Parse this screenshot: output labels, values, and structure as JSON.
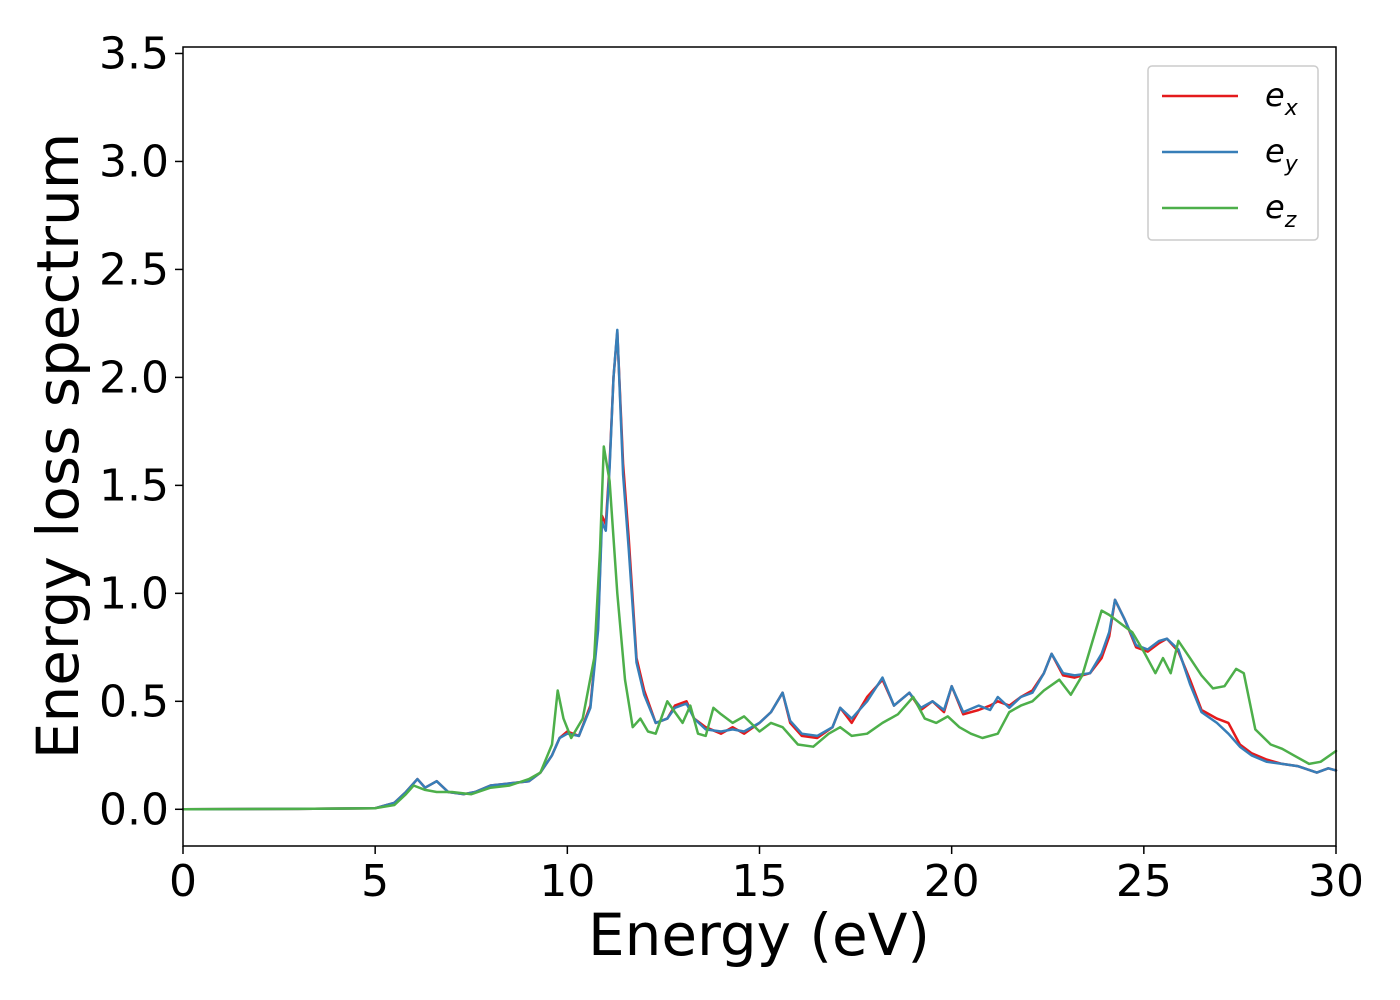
{
  "chart_data": {
    "type": "line",
    "title": "",
    "xlabel": "Energy (eV)",
    "ylabel": "Energy loss spectrum",
    "xlim": [
      0,
      30
    ],
    "ylim": [
      -0.17,
      3.53
    ],
    "xticks": [
      0,
      5,
      10,
      15,
      20,
      25,
      30
    ],
    "xtick_labels": [
      "0",
      "5",
      "10",
      "15",
      "20",
      "25",
      "30"
    ],
    "yticks": [
      0.0,
      0.5,
      1.0,
      1.5,
      2.0,
      2.5,
      3.0,
      3.5
    ],
    "ytick_labels": [
      "0.0",
      "0.5",
      "1.0",
      "1.5",
      "2.0",
      "2.5",
      "3.0",
      "3.5"
    ],
    "grid": false,
    "legend_position": "top-right",
    "series": [
      {
        "name": "e_x",
        "legend_base": "e",
        "legend_sub": "x",
        "color": "#e41a1c",
        "x": [
          0,
          3,
          5,
          5.5,
          5.8,
          6.1,
          6.3,
          6.6,
          6.9,
          7.3,
          7.6,
          8.0,
          8.5,
          9.0,
          9.3,
          9.6,
          9.8,
          10.0,
          10.3,
          10.6,
          10.8,
          10.9,
          11.0,
          11.1,
          11.2,
          11.3,
          11.45,
          11.6,
          11.8,
          12.0,
          12.3,
          12.6,
          12.8,
          13.1,
          13.3,
          13.6,
          14.0,
          14.3,
          14.6,
          15.0,
          15.3,
          15.6,
          15.8,
          16.1,
          16.5,
          16.9,
          17.1,
          17.4,
          17.8,
          18.2,
          18.5,
          18.9,
          19.2,
          19.5,
          19.8,
          20.0,
          20.3,
          20.7,
          21.0,
          21.2,
          21.5,
          21.8,
          22.1,
          22.4,
          22.6,
          22.9,
          23.2,
          23.6,
          23.9,
          24.1,
          24.25,
          24.5,
          24.8,
          25.1,
          25.4,
          25.6,
          25.9,
          26.2,
          26.5,
          26.9,
          27.2,
          27.5,
          27.8,
          28.2,
          28.6,
          29.0,
          29.5,
          29.8,
          30
        ],
        "y": [
          0.0,
          0.002,
          0.005,
          0.03,
          0.08,
          0.14,
          0.1,
          0.13,
          0.08,
          0.07,
          0.08,
          0.11,
          0.12,
          0.13,
          0.17,
          0.25,
          0.33,
          0.36,
          0.34,
          0.48,
          0.85,
          1.36,
          1.32,
          1.6,
          2.0,
          2.21,
          1.6,
          1.25,
          0.7,
          0.55,
          0.4,
          0.42,
          0.48,
          0.5,
          0.42,
          0.38,
          0.35,
          0.38,
          0.35,
          0.4,
          0.45,
          0.54,
          0.4,
          0.34,
          0.33,
          0.38,
          0.47,
          0.4,
          0.52,
          0.6,
          0.48,
          0.54,
          0.46,
          0.5,
          0.45,
          0.57,
          0.44,
          0.46,
          0.48,
          0.5,
          0.48,
          0.52,
          0.55,
          0.63,
          0.72,
          0.62,
          0.61,
          0.63,
          0.7,
          0.8,
          0.97,
          0.88,
          0.75,
          0.73,
          0.77,
          0.79,
          0.73,
          0.6,
          0.46,
          0.42,
          0.4,
          0.3,
          0.26,
          0.23,
          0.21,
          0.2,
          0.17,
          0.19,
          0.18
        ]
      },
      {
        "name": "e_y",
        "legend_base": "e",
        "legend_sub": "y",
        "color": "#377eb8",
        "x": [
          0,
          3,
          5,
          5.5,
          5.8,
          6.1,
          6.3,
          6.6,
          6.9,
          7.3,
          7.6,
          8.0,
          8.5,
          9.0,
          9.3,
          9.6,
          9.8,
          10.0,
          10.3,
          10.6,
          10.8,
          10.9,
          11.0,
          11.1,
          11.2,
          11.3,
          11.45,
          11.6,
          11.8,
          12.0,
          12.3,
          12.6,
          12.8,
          13.1,
          13.3,
          13.6,
          14.0,
          14.3,
          14.6,
          15.0,
          15.3,
          15.6,
          15.8,
          16.1,
          16.5,
          16.9,
          17.1,
          17.4,
          17.8,
          18.2,
          18.5,
          18.9,
          19.2,
          19.5,
          19.8,
          20.0,
          20.3,
          20.7,
          21.0,
          21.2,
          21.5,
          21.8,
          22.1,
          22.4,
          22.6,
          22.9,
          23.2,
          23.6,
          23.9,
          24.1,
          24.25,
          24.5,
          24.8,
          25.1,
          25.4,
          25.6,
          25.9,
          26.2,
          26.5,
          26.9,
          27.2,
          27.5,
          27.8,
          28.2,
          28.6,
          29.0,
          29.5,
          29.8,
          30
        ],
        "y": [
          0.0,
          0.002,
          0.005,
          0.03,
          0.08,
          0.14,
          0.1,
          0.13,
          0.08,
          0.07,
          0.08,
          0.11,
          0.12,
          0.13,
          0.17,
          0.25,
          0.33,
          0.35,
          0.34,
          0.47,
          0.83,
          1.33,
          1.29,
          1.58,
          2.0,
          2.22,
          1.55,
          1.2,
          0.68,
          0.53,
          0.4,
          0.42,
          0.47,
          0.49,
          0.42,
          0.37,
          0.36,
          0.37,
          0.36,
          0.4,
          0.45,
          0.54,
          0.41,
          0.35,
          0.34,
          0.38,
          0.47,
          0.42,
          0.5,
          0.61,
          0.48,
          0.54,
          0.47,
          0.5,
          0.46,
          0.57,
          0.45,
          0.48,
          0.46,
          0.52,
          0.47,
          0.52,
          0.54,
          0.63,
          0.72,
          0.63,
          0.62,
          0.63,
          0.72,
          0.82,
          0.97,
          0.88,
          0.76,
          0.74,
          0.78,
          0.79,
          0.74,
          0.58,
          0.45,
          0.4,
          0.35,
          0.29,
          0.25,
          0.22,
          0.21,
          0.2,
          0.17,
          0.19,
          0.18
        ]
      },
      {
        "name": "e_z",
        "legend_base": "e",
        "legend_sub": "z",
        "color": "#4daf4a",
        "x": [
          0,
          3,
          5,
          5.5,
          5.8,
          6.0,
          6.3,
          6.6,
          7.0,
          7.5,
          8.0,
          8.5,
          9.0,
          9.3,
          9.6,
          9.75,
          9.9,
          10.1,
          10.4,
          10.7,
          10.85,
          10.95,
          11.1,
          11.3,
          11.5,
          11.7,
          11.9,
          12.1,
          12.3,
          12.6,
          12.8,
          13.0,
          13.2,
          13.4,
          13.6,
          13.8,
          14.0,
          14.3,
          14.6,
          15.0,
          15.3,
          15.6,
          16.0,
          16.4,
          16.8,
          17.1,
          17.4,
          17.8,
          18.2,
          18.6,
          19.0,
          19.3,
          19.6,
          19.9,
          20.2,
          20.5,
          20.8,
          21.2,
          21.5,
          21.8,
          22.1,
          22.4,
          22.8,
          23.1,
          23.4,
          23.7,
          23.9,
          24.1,
          24.4,
          24.7,
          25.0,
          25.3,
          25.5,
          25.7,
          25.9,
          26.2,
          26.5,
          26.8,
          27.1,
          27.4,
          27.6,
          27.9,
          28.3,
          28.6,
          28.9,
          29.3,
          29.6,
          30
        ],
        "y": [
          0.0,
          0.002,
          0.005,
          0.02,
          0.07,
          0.11,
          0.09,
          0.08,
          0.08,
          0.07,
          0.1,
          0.11,
          0.14,
          0.17,
          0.3,
          0.55,
          0.42,
          0.33,
          0.42,
          0.7,
          1.2,
          1.68,
          1.52,
          1.0,
          0.6,
          0.38,
          0.42,
          0.36,
          0.35,
          0.5,
          0.45,
          0.4,
          0.48,
          0.35,
          0.34,
          0.47,
          0.44,
          0.4,
          0.43,
          0.36,
          0.4,
          0.38,
          0.3,
          0.29,
          0.35,
          0.38,
          0.34,
          0.35,
          0.4,
          0.44,
          0.52,
          0.42,
          0.4,
          0.43,
          0.38,
          0.35,
          0.33,
          0.35,
          0.45,
          0.48,
          0.5,
          0.55,
          0.6,
          0.53,
          0.62,
          0.8,
          0.92,
          0.9,
          0.86,
          0.82,
          0.73,
          0.63,
          0.7,
          0.63,
          0.78,
          0.7,
          0.62,
          0.56,
          0.57,
          0.65,
          0.63,
          0.37,
          0.3,
          0.28,
          0.25,
          0.21,
          0.22,
          0.27
        ]
      }
    ]
  }
}
